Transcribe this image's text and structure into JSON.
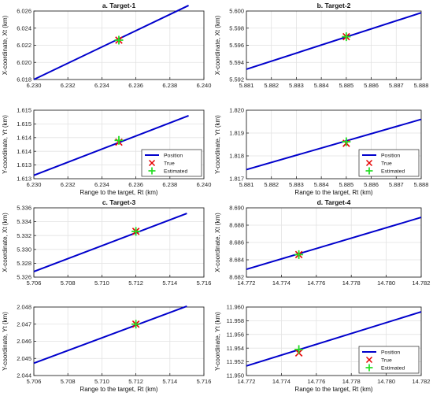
{
  "colors": {
    "line": "#0000cc",
    "true_marker": "#e60000",
    "estimated_marker": "#22dd22",
    "grid": "#e2e2e2",
    "axis": "#262626"
  },
  "chart_data": [
    {
      "type": "line",
      "title": "a. Target-1",
      "xlabel": "",
      "ylabel": "X-coordinate, Xt (km)",
      "xlim": [
        6.23,
        6.24
      ],
      "ylim": [
        6.018,
        6.026
      ],
      "xticks": [
        "6.230",
        "6.232",
        "6.234",
        "6.236",
        "6.238",
        "6.240"
      ],
      "yticks": [
        "6.018",
        "6.020",
        "6.022",
        "6.024",
        "6.026"
      ],
      "grid": true,
      "legend": null,
      "series": [
        {
          "x": [
            6.23,
            6.2391
          ],
          "y": [
            6.018,
            6.02665
          ]
        }
      ],
      "true_point": {
        "x": 6.235,
        "y": 6.0226
      },
      "estimated_point": {
        "x": 6.235,
        "y": 6.0226
      }
    },
    {
      "type": "line",
      "title": "b. Target-2",
      "xlabel": "",
      "ylabel": "X-coordinate, Xt (km)",
      "xlim": [
        5.881,
        5.888
      ],
      "ylim": [
        5.592,
        5.6
      ],
      "xticks": [
        "5.881",
        "5.882",
        "5.883",
        "5.884",
        "5.885",
        "5.886",
        "5.887",
        "5.888"
      ],
      "yticks": [
        "5.592",
        "5.594",
        "5.596",
        "5.598",
        "5.600"
      ],
      "grid": true,
      "legend": null,
      "series": [
        {
          "x": [
            5.881,
            5.888
          ],
          "y": [
            5.5932,
            5.5998
          ]
        }
      ],
      "true_point": {
        "x": 5.885,
        "y": 5.597
      },
      "estimated_point": {
        "x": 5.885,
        "y": 5.597
      }
    },
    {
      "type": "line",
      "title": "",
      "xlabel": "Range to the target, Rt (km)",
      "ylabel": "Y-coordinate, Yt (km)",
      "xlim": [
        6.23,
        6.24
      ],
      "ylim": [
        1.613,
        1.615
      ],
      "xticks": [
        "6.230",
        "6.232",
        "6.234",
        "6.236",
        "6.238",
        "6.240"
      ],
      "yticks": [
        "1.613",
        "1.613",
        "1.614",
        "1.614",
        "1.615",
        "1.615"
      ],
      "grid": true,
      "legend": "bottom-right",
      "series": [
        {
          "x": [
            6.23,
            6.2391
          ],
          "y": [
            1.6131,
            1.61484
          ]
        }
      ],
      "true_point": {
        "x": 6.235,
        "y": 1.61407
      },
      "estimated_point": {
        "x": 6.235,
        "y": 1.61412
      }
    },
    {
      "type": "line",
      "title": "",
      "xlabel": "Range to the target, Rt (km)",
      "ylabel": "Y-coordinate, Yt (km)",
      "xlim": [
        5.881,
        5.888
      ],
      "ylim": [
        1.817,
        1.82
      ],
      "xticks": [
        "5.881",
        "5.882",
        "5.883",
        "5.884",
        "5.885",
        "5.886",
        "5.887",
        "5.888"
      ],
      "yticks": [
        "1.817",
        "1.818",
        "1.819",
        "1.820"
      ],
      "grid": true,
      "legend": "bottom-right",
      "series": [
        {
          "x": [
            5.881,
            5.888
          ],
          "y": [
            1.8174,
            1.8196
          ]
        }
      ],
      "true_point": {
        "x": 5.885,
        "y": 1.81855
      },
      "estimated_point": {
        "x": 5.885,
        "y": 1.81862
      }
    },
    {
      "type": "line",
      "title": "c. Target-3",
      "xlabel": "",
      "ylabel": "X-coordinate, Xt (km)",
      "xlim": [
        5.706,
        5.716
      ],
      "ylim": [
        5.326,
        5.336
      ],
      "xticks": [
        "5.706",
        "5.708",
        "5.710",
        "5.712",
        "5.714",
        "5.716"
      ],
      "yticks": [
        "5.326",
        "5.328",
        "5.330",
        "5.332",
        "5.334",
        "5.336"
      ],
      "grid": true,
      "legend": null,
      "series": [
        {
          "x": [
            5.706,
            5.715
          ],
          "y": [
            5.3268,
            5.3352
          ]
        }
      ],
      "true_point": {
        "x": 5.712,
        "y": 5.3326
      },
      "estimated_point": {
        "x": 5.712,
        "y": 5.3326
      }
    },
    {
      "type": "line",
      "title": "d. Target-4",
      "xlabel": "",
      "ylabel": "X-coordinate, Xt (km)",
      "xlim": [
        14.772,
        14.782
      ],
      "ylim": [
        8.682,
        8.69
      ],
      "xticks": [
        "14.772",
        "14.774",
        "14.776",
        "14.778",
        "14.780",
        "14.782"
      ],
      "yticks": [
        "8.682",
        "8.684",
        "8.686",
        "8.688",
        "8.690"
      ],
      "grid": true,
      "legend": null,
      "series": [
        {
          "x": [
            14.772,
            14.782
          ],
          "y": [
            8.6829,
            8.6889
          ]
        }
      ],
      "true_point": {
        "x": 14.775,
        "y": 8.6846
      },
      "estimated_point": {
        "x": 14.775,
        "y": 8.6846
      }
    },
    {
      "type": "line",
      "title": "",
      "xlabel": "Range to the target, Rt (km)",
      "ylabel": "Y-coordinate, Yt (km)",
      "xlim": [
        5.706,
        5.716
      ],
      "ylim": [
        2.044,
        2.048
      ],
      "xticks": [
        "5.706",
        "5.708",
        "5.710",
        "5.712",
        "5.714",
        "5.716"
      ],
      "yticks": [
        "2.044",
        "2.045",
        "2.046",
        "2.047",
        "2.048"
      ],
      "grid": true,
      "legend": null,
      "series": [
        {
          "x": [
            5.706,
            5.715
          ],
          "y": [
            2.04472,
            2.04805
          ]
        }
      ],
      "true_point": {
        "x": 5.712,
        "y": 2.047
      },
      "estimated_point": {
        "x": 5.712,
        "y": 2.047
      }
    },
    {
      "type": "line",
      "title": "",
      "xlabel": "Range to the target, Rt (km)",
      "ylabel": "Y-coordinate, Yt (km)",
      "xlim": [
        14.772,
        14.782
      ],
      "ylim": [
        11.95,
        11.96
      ],
      "xticks": [
        "14.772",
        "14.774",
        "14.776",
        "14.778",
        "14.780",
        "14.782"
      ],
      "yticks": [
        "11.950",
        "11.952",
        "11.954",
        "11.956",
        "11.958",
        "11.960"
      ],
      "grid": true,
      "legend": "bottom-right",
      "series": [
        {
          "x": [
            14.772,
            14.782
          ],
          "y": [
            11.9514,
            11.9593
          ]
        }
      ],
      "true_point": {
        "x": 14.775,
        "y": 11.9533
      },
      "estimated_point": {
        "x": 14.775,
        "y": 11.9538
      }
    }
  ],
  "legend": {
    "position": "Position",
    "true": "True",
    "estimated": "Estimated"
  }
}
